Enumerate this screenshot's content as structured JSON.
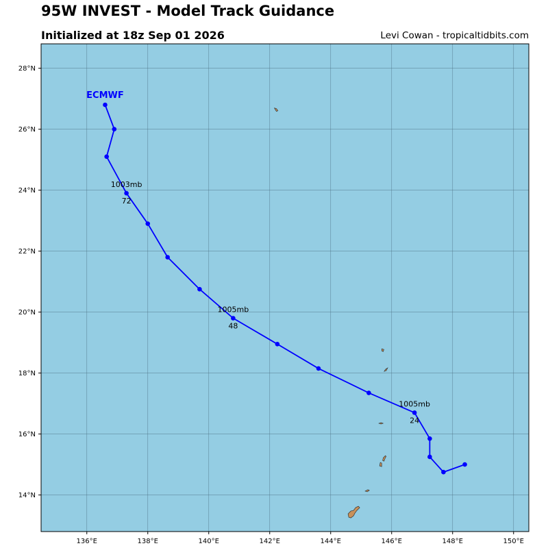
{
  "title": "95W INVEST - Model Track Guidance",
  "subtitle": "Initialized at 18z Sep 01 2026",
  "credit": "Levi Cowan - tropicaltidbits.com",
  "colors": {
    "ocean": "#94cde3",
    "land": "#c8915a",
    "grid": "#4a6f80",
    "track": "#0000ff",
    "model_label": "#0000ff"
  },
  "map": {
    "lon_ticks": [
      "136°E",
      "138°E",
      "140°E",
      "142°E",
      "144°E",
      "146°E",
      "148°E",
      "150°E"
    ],
    "lat_ticks": [
      "14°N",
      "16°N",
      "18°N",
      "20°N",
      "22°N",
      "24°N",
      "26°N",
      "28°N"
    ]
  },
  "chart_data": {
    "type": "map-track",
    "lon_range": [
      134.5,
      150.5
    ],
    "lat_range": [
      12.8,
      28.8
    ],
    "model": "ECMWF",
    "track": [
      {
        "lon": 148.4,
        "lat": 15.0
      },
      {
        "lon": 147.7,
        "lat": 14.75
      },
      {
        "lon": 147.25,
        "lat": 15.25
      },
      {
        "lon": 147.25,
        "lat": 15.85
      },
      {
        "lon": 146.75,
        "lat": 16.7
      },
      {
        "lon": 145.25,
        "lat": 17.35
      },
      {
        "lon": 143.6,
        "lat": 18.15
      },
      {
        "lon": 142.25,
        "lat": 18.95
      },
      {
        "lon": 140.8,
        "lat": 19.8
      },
      {
        "lon": 139.7,
        "lat": 20.75
      },
      {
        "lon": 138.65,
        "lat": 21.8
      },
      {
        "lon": 138.0,
        "lat": 22.9
      },
      {
        "lon": 137.3,
        "lat": 23.9
      },
      {
        "lon": 136.65,
        "lat": 25.1
      },
      {
        "lon": 136.9,
        "lat": 26.0
      },
      {
        "lon": 136.6,
        "lat": 26.8
      }
    ],
    "labels": [
      {
        "lon": 146.75,
        "lat": 16.7,
        "pressure": "1005mb",
        "hour": "24"
      },
      {
        "lon": 140.8,
        "lat": 19.8,
        "pressure": "1005mb",
        "hour": "48"
      },
      {
        "lon": 137.3,
        "lat": 23.9,
        "pressure": "1003mb",
        "hour": "72"
      }
    ],
    "islands": [
      {
        "lon": 144.75,
        "lat": 13.45,
        "name": "Guam"
      },
      {
        "lon": 145.2,
        "lat": 14.15,
        "name": "Rota"
      },
      {
        "lon": 145.65,
        "lat": 15.0,
        "name": "Tinian"
      },
      {
        "lon": 145.75,
        "lat": 15.2,
        "name": "Saipan"
      },
      {
        "lon": 145.65,
        "lat": 16.35,
        "name": "Anatahan"
      },
      {
        "lon": 145.8,
        "lat": 18.1,
        "name": "Pagan"
      },
      {
        "lon": 145.7,
        "lat": 18.75,
        "name": "Agrihan"
      },
      {
        "lon": 142.2,
        "lat": 26.65,
        "name": "Haha-jima"
      }
    ]
  }
}
